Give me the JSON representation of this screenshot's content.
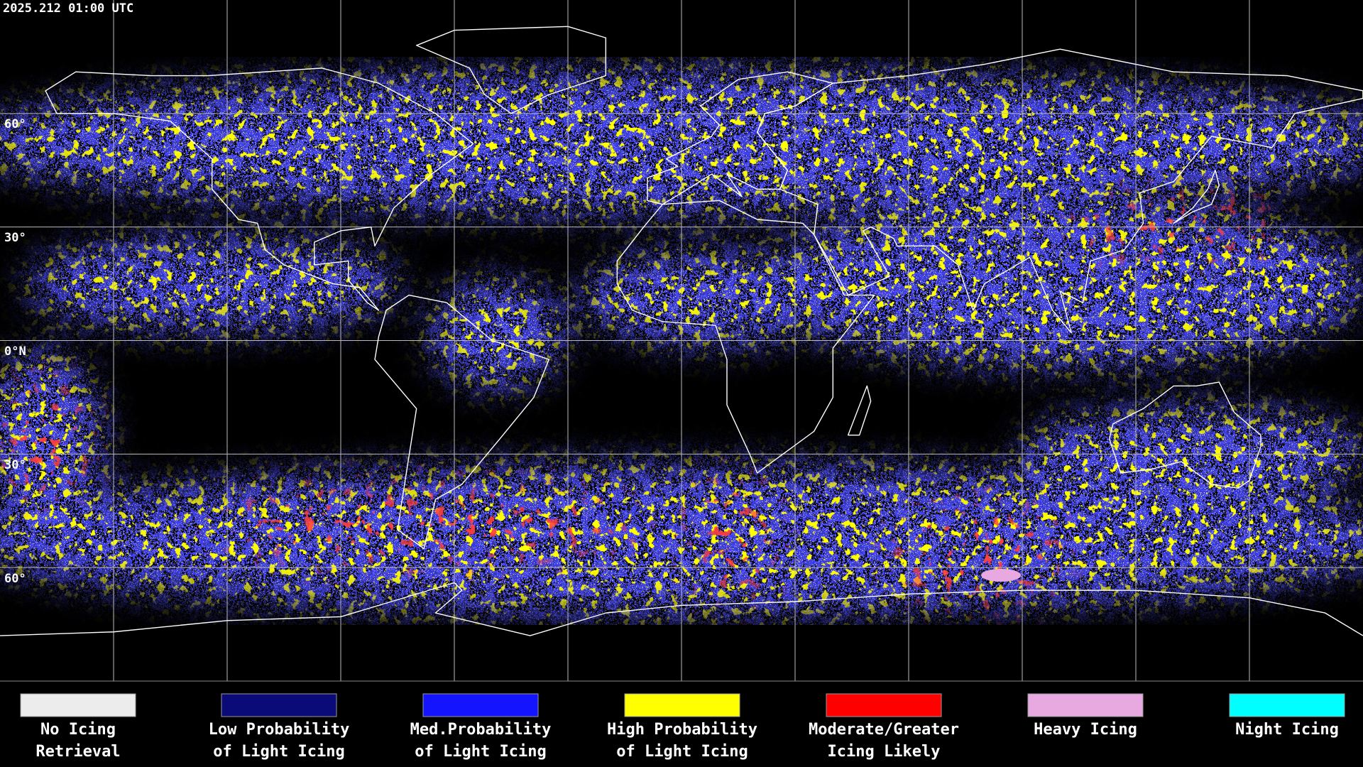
{
  "header": {
    "timestamp": "2025.212 01:00 UTC"
  },
  "map": {
    "latitude_labels": [
      "60°",
      "30°",
      "0°N",
      "30°",
      "60°"
    ]
  },
  "legend": [
    {
      "label": [
        "No Icing",
        "Retrieval"
      ],
      "color": "#ececec"
    },
    {
      "label": [
        "Low Probability",
        "of Light Icing"
      ],
      "color": "#0a0a78"
    },
    {
      "label": [
        "Med.Probability",
        "of Light Icing"
      ],
      "color": "#1414ff"
    },
    {
      "label": [
        "High Probability",
        "of Light Icing"
      ],
      "color": "#ffff00"
    },
    {
      "label": [
        "Moderate/Greater",
        "Icing Likely"
      ],
      "color": "#ff0000"
    },
    {
      "label": [
        "Heavy Icing",
        ""
      ],
      "color": "#e8a8e0"
    },
    {
      "label": [
        "Night Icing",
        ""
      ],
      "color": "#00ffff"
    }
  ]
}
